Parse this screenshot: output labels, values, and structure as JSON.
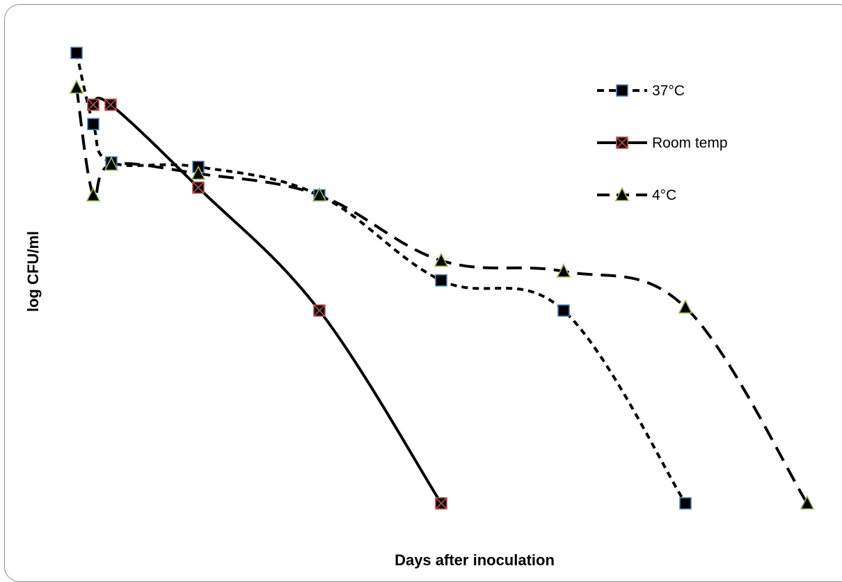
{
  "chart_data": {
    "type": "line",
    "title": "",
    "xlabel": "Days after inoculation",
    "ylabel": "log CFU/ml",
    "x_ticks_shown": false,
    "y_ticks_shown": false,
    "grid": false,
    "legend_position": "top-right",
    "series": [
      {
        "name": "37°C",
        "line_style": "dashed-short",
        "marker": "square",
        "marker_fill": "#000000",
        "marker_edge": "#4f81bd",
        "values_relative": [
          0.0,
          0.158,
          0.243,
          0.253,
          0.316,
          0.505,
          0.572,
          1.0
        ]
      },
      {
        "name": "Room temp",
        "line_style": "solid",
        "marker": "x-square",
        "marker_fill": "#000000",
        "marker_edge": "#c0504d",
        "values_relative": [
          0.115,
          0.115,
          0.299,
          0.572,
          1.0
        ]
      },
      {
        "name": "4°C",
        "line_style": "dashed-long",
        "marker": "triangle",
        "marker_fill": "#000000",
        "marker_edge": "#9bbb59",
        "values_relative": [
          0.077,
          0.316,
          0.248,
          0.268,
          0.316,
          0.461,
          0.485,
          0.565,
          1.0
        ]
      }
    ],
    "note_units": "values are relative drop from top (0 = highest observed, 1 = lowest); axes are unlabeled in the original"
  }
}
